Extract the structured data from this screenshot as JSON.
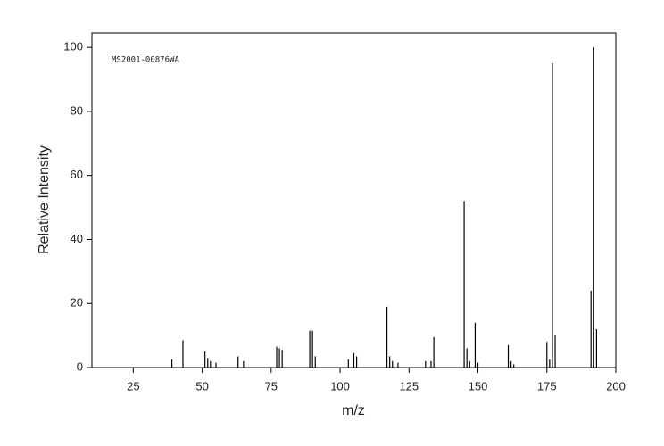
{
  "chart_data": {
    "type": "stem",
    "annotation": "MS2001-00876WA",
    "x_label": "m/z",
    "y_label": "Relative Intensity",
    "color": "#000000",
    "x": [
      39,
      43,
      51,
      52,
      53,
      55,
      63,
      65,
      77,
      78,
      79,
      89,
      90,
      91,
      103,
      105,
      106,
      117,
      118,
      119,
      121,
      131,
      133,
      134,
      145,
      146,
      147,
      149,
      150,
      161,
      162,
      163,
      175,
      176,
      177,
      178,
      191,
      192,
      193
    ],
    "values": [
      2.5,
      8.5,
      5,
      3,
      2,
      1.5,
      3.5,
      2,
      6.5,
      6,
      5.5,
      11.5,
      11.5,
      3.5,
      2.5,
      4.5,
      3.5,
      19,
      3.5,
      2,
      1.5,
      2,
      2,
      9.5,
      52,
      6,
      2,
      14,
      1.5,
      7,
      2,
      1,
      8,
      2.5,
      95,
      10,
      24,
      100,
      12
    ],
    "xlim": [
      10,
      200
    ],
    "ylim": [
      0,
      104.5
    ],
    "xticks": [
      25,
      50,
      75,
      100,
      125,
      150,
      175,
      200
    ],
    "yticks": [
      0,
      20,
      40,
      60,
      80,
      100
    ]
  }
}
